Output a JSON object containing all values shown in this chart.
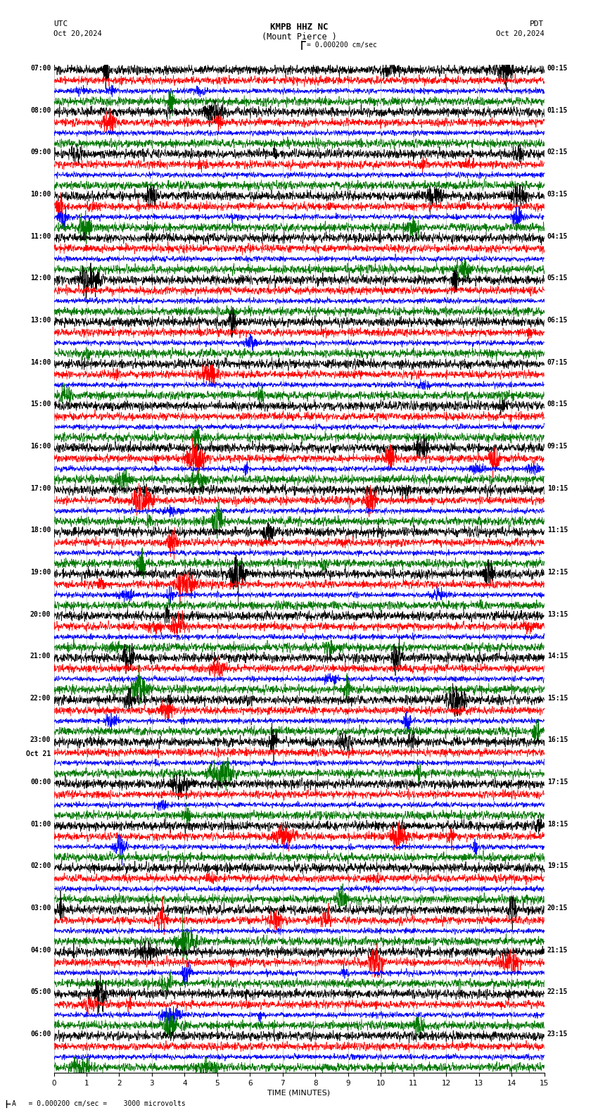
{
  "title_line1": "KMPB HHZ NC",
  "title_line2": "(Mount Pierce )",
  "utc_label": "UTC",
  "pdt_label": "PDT",
  "date_left": "Oct 20,2024",
  "date_right": "Oct 20,2024",
  "scale_label": "= 0.000200 cm/sec",
  "footer_label": "= 0.000200 cm/sec =    3000 microvolts",
  "xlabel": "TIME (MINUTES)",
  "xlim": [
    0,
    15
  ],
  "xticks": [
    0,
    1,
    2,
    3,
    4,
    5,
    6,
    7,
    8,
    9,
    10,
    11,
    12,
    13,
    14,
    15
  ],
  "background_color": "#ffffff",
  "trace_colors": [
    "#000000",
    "#ff0000",
    "#0000ff",
    "#007700"
  ],
  "left_times": [
    "07:00",
    "08:00",
    "09:00",
    "10:00",
    "11:00",
    "12:00",
    "13:00",
    "14:00",
    "15:00",
    "16:00",
    "17:00",
    "18:00",
    "19:00",
    "20:00",
    "21:00",
    "22:00",
    "23:00",
    "Oct 21",
    "00:00",
    "01:00",
    "02:00",
    "03:00",
    "04:00",
    "05:00",
    "06:00"
  ],
  "right_times": [
    "00:15",
    "01:15",
    "02:15",
    "03:15",
    "04:15",
    "05:15",
    "06:15",
    "07:15",
    "08:15",
    "09:15",
    "10:15",
    "11:15",
    "12:15",
    "13:15",
    "14:15",
    "15:15",
    "16:15",
    "17:15",
    "18:15",
    "19:15",
    "20:15",
    "21:15",
    "22:15",
    "23:15"
  ],
  "oct21_row": 17,
  "figwidth": 8.5,
  "figheight": 15.84,
  "dpi": 100,
  "grid_color": "#999999",
  "grid_lw": 0.4,
  "trace_lw": 0.5,
  "noise_seed": 12345
}
